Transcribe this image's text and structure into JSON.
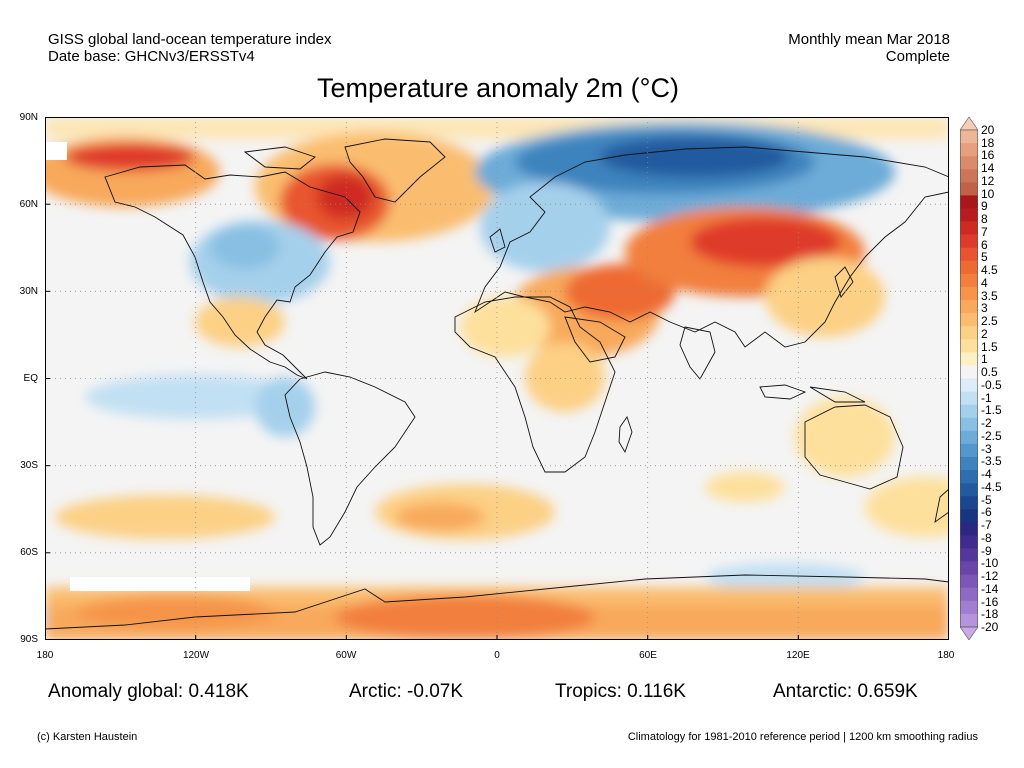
{
  "header": {
    "left_line1": "GISS global land-ocean temperature index",
    "left_line2": "Date base: GHCNv3/ERSSTv4",
    "right_line1": "Monthly mean Mar 2018",
    "right_line2": "Complete"
  },
  "title": "Temperature anomaly 2m (°C)",
  "lat_labels": [
    "90N",
    "60N",
    "30N",
    "EQ",
    "30S",
    "60S",
    "90S"
  ],
  "lon_labels": [
    "180",
    "120W",
    "60W",
    "0",
    "60E",
    "120E",
    "180"
  ],
  "colorbar": {
    "labels": [
      "20",
      "18",
      "16",
      "14",
      "12",
      "10",
      "9",
      "8",
      "7",
      "6",
      "5",
      "4.5",
      "4",
      "3.5",
      "3",
      "2.5",
      "2",
      "1.5",
      "1",
      "0.5",
      "-0.5",
      "-1",
      "-1.5",
      "-2",
      "-2.5",
      "-3",
      "-3.5",
      "-4",
      "-4.5",
      "-5",
      "-6",
      "-7",
      "-8",
      "-9",
      "-10",
      "-12",
      "-14",
      "-16",
      "-18",
      "-20"
    ],
    "colors": [
      "#f7cbb4",
      "#eeb596",
      "#e4a07f",
      "#d98c6b",
      "#cc7659",
      "#bf6248",
      "#a81818",
      "#b91c1c",
      "#cf2a22",
      "#df3b2c",
      "#e8542f",
      "#ee6a33",
      "#f27f3d",
      "#f5944a",
      "#f8a95c",
      "#fabd70",
      "#fcd085",
      "#fde09c",
      "#fef0c2",
      "#f4f4f4",
      "#dcedf8",
      "#c1e0f3",
      "#a5d0ec",
      "#88bfe2",
      "#6dacd8",
      "#5498cb",
      "#3e83bd",
      "#2d6eae",
      "#225a9f",
      "#1b4790",
      "#163780",
      "#2c2783",
      "#402b8e",
      "#55369b",
      "#6945a8",
      "#7c57b6",
      "#8f6ac3",
      "#a27ed0",
      "#b693dd",
      "#c9a9e9"
    ]
  },
  "stats": {
    "global": "Anomaly global: 0.418K",
    "arctic": "Arctic: -0.07K",
    "tropics": "Tropics: 0.116K",
    "antarctic": "Antarctic: 0.659K"
  },
  "footer": {
    "credit": "(c) Karsten Haustein",
    "note": "Climatology for 1981-2010 reference period | 1200 km smoothing radius"
  }
}
